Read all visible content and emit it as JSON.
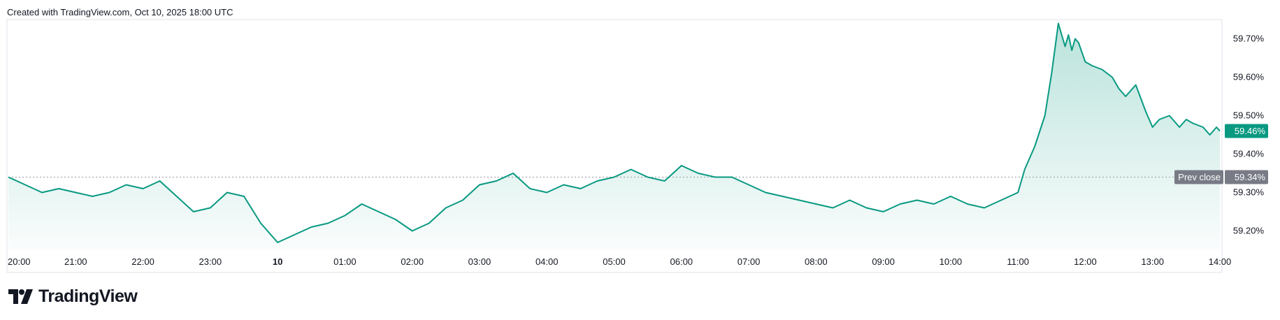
{
  "header": {
    "text": "Created with TradingView.com, Oct 10, 2025 18:00 UTC"
  },
  "brand": {
    "name": "TradingView",
    "icon": "tradingview-logo-icon"
  },
  "colors": {
    "line": "#089981",
    "fill": "#089981",
    "prev_close_badge": "#787b86",
    "text": "#131722",
    "prev_close_line": "#9598a1"
  },
  "chart_data": {
    "type": "area",
    "y_unit": "%",
    "y_ticks": [
      "59.70%",
      "59.60%",
      "59.50%",
      "59.40%",
      "59.30%",
      "59.20%"
    ],
    "y_tick_values": [
      59.7,
      59.6,
      59.5,
      59.4,
      59.3,
      59.2
    ],
    "ylim": [
      59.15,
      59.75
    ],
    "x_ticks": [
      "20:00",
      "21:00",
      "22:00",
      "23:00",
      "10",
      "01:00",
      "02:00",
      "03:00",
      "04:00",
      "05:00",
      "06:00",
      "07:00",
      "08:00",
      "09:00",
      "10:00",
      "11:00",
      "12:00",
      "13:00",
      "14:00"
    ],
    "x_tick_hours": [
      0,
      1,
      2,
      3,
      4,
      5,
      6,
      7,
      8,
      9,
      10,
      11,
      12,
      13,
      14,
      15,
      16,
      17,
      18
    ],
    "x_bold_ticks": [
      "10"
    ],
    "x_range_hours": [
      0,
      18.0
    ],
    "hours": [
      0,
      0.25,
      0.5,
      0.75,
      1.0,
      1.25,
      1.5,
      1.75,
      2.0,
      2.25,
      2.5,
      2.75,
      3.0,
      3.25,
      3.5,
      3.75,
      4.0,
      4.25,
      4.5,
      4.75,
      5.0,
      5.25,
      5.5,
      5.75,
      6.0,
      6.25,
      6.5,
      6.75,
      7.0,
      7.25,
      7.5,
      7.75,
      8.0,
      8.25,
      8.5,
      8.75,
      9.0,
      9.25,
      9.5,
      9.75,
      10.0,
      10.25,
      10.5,
      10.75,
      11.0,
      11.25,
      11.5,
      11.75,
      12.0,
      12.25,
      12.5,
      12.75,
      13.0,
      13.25,
      13.5,
      13.75,
      14.0,
      14.25,
      14.5,
      14.75,
      15.0,
      15.1,
      15.25,
      15.4,
      15.5,
      15.6,
      15.7,
      15.75,
      15.8,
      15.85,
      15.9,
      16.0,
      16.1,
      16.25,
      16.4,
      16.5,
      16.6,
      16.75,
      16.9,
      17.0,
      17.1,
      17.25,
      17.4,
      17.5,
      17.6,
      17.75,
      17.85,
      17.95,
      18.0
    ],
    "values": [
      59.34,
      59.32,
      59.3,
      59.31,
      59.3,
      59.29,
      59.3,
      59.32,
      59.31,
      59.33,
      59.29,
      59.25,
      59.26,
      59.3,
      59.29,
      59.22,
      59.17,
      59.19,
      59.21,
      59.22,
      59.24,
      59.27,
      59.25,
      59.23,
      59.2,
      59.22,
      59.26,
      59.28,
      59.32,
      59.33,
      59.35,
      59.31,
      59.3,
      59.32,
      59.31,
      59.33,
      59.34,
      59.36,
      59.34,
      59.33,
      59.37,
      59.35,
      59.34,
      59.34,
      59.32,
      59.3,
      59.29,
      59.28,
      59.27,
      59.26,
      59.28,
      59.26,
      59.25,
      59.27,
      59.28,
      59.27,
      59.29,
      59.27,
      59.26,
      59.28,
      59.3,
      59.36,
      59.42,
      59.5,
      59.61,
      59.74,
      59.68,
      59.71,
      59.67,
      59.7,
      59.69,
      59.64,
      59.63,
      59.62,
      59.6,
      59.57,
      59.55,
      59.58,
      59.51,
      59.47,
      59.49,
      59.5,
      59.47,
      59.49,
      59.48,
      59.47,
      59.45,
      59.47,
      59.46
    ],
    "last_value_label": "59.46%",
    "last_value": 59.46,
    "prev_close": {
      "label": "Prev close",
      "value_label": "59.34%",
      "value": 59.34
    }
  }
}
